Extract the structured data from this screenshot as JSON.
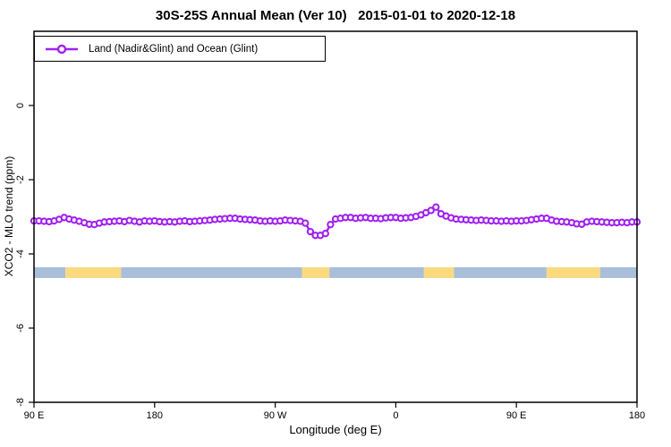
{
  "chart_data": {
    "type": "line",
    "title": "30S-25S Annual Mean (Ver 10)   2015-01-01 to 2020-12-18",
    "xlabel": "Longitude (deg E)",
    "ylabel": "XCO2 - MLO trend (ppm)",
    "grid": false,
    "legend_position": "top-left",
    "legend": [
      {
        "label": "Land (Nadir&Glint) and Ocean (Glint)",
        "color": "#A020F0",
        "marker": "open-circle"
      }
    ],
    "xlim_display_deg": [
      90,
      540
    ],
    "ylim": [
      -8,
      2
    ],
    "x_ticks": [
      {
        "label": "90 E",
        "deg": 90
      },
      {
        "label": "180",
        "deg": 180
      },
      {
        "label": "90 W",
        "deg": 270
      },
      {
        "label": "0",
        "deg": 360
      },
      {
        "label": "90 E",
        "deg": 450
      },
      {
        "label": "180",
        "deg": 540
      }
    ],
    "y_ticks": [
      {
        "label": "0",
        "value": 0
      },
      {
        "label": "-2",
        "value": -2
      },
      {
        "label": "-4",
        "value": -4
      },
      {
        "label": "-6",
        "value": -6
      },
      {
        "label": "-8",
        "value": -8
      }
    ],
    "series": [
      {
        "name": "Land (Nadir&Glint) and Ocean (Glint)",
        "color": "#A020F0",
        "marker_fill": "#FFFFFF",
        "x_start_deg": 90,
        "x_step_deg": 3.75,
        "values": [
          -3.11,
          -3.11,
          -3.12,
          -3.13,
          -3.11,
          -3.07,
          -3.02,
          -3.06,
          -3.09,
          -3.12,
          -3.16,
          -3.2,
          -3.21,
          -3.17,
          -3.14,
          -3.13,
          -3.12,
          -3.11,
          -3.13,
          -3.1,
          -3.12,
          -3.14,
          -3.11,
          -3.12,
          -3.11,
          -3.13,
          -3.14,
          -3.13,
          -3.14,
          -3.12,
          -3.11,
          -3.13,
          -3.12,
          -3.11,
          -3.1,
          -3.09,
          -3.07,
          -3.06,
          -3.05,
          -3.04,
          -3.04,
          -3.06,
          -3.07,
          -3.08,
          -3.09,
          -3.11,
          -3.12,
          -3.11,
          -3.12,
          -3.11,
          -3.09,
          -3.1,
          -3.11,
          -3.12,
          -3.17,
          -3.4,
          -3.5,
          -3.5,
          -3.45,
          -3.21,
          -3.06,
          -3.04,
          -3.02,
          -3.02,
          -3.04,
          -3.03,
          -3.02,
          -3.04,
          -3.04,
          -3.05,
          -3.03,
          -3.02,
          -3.02,
          -3.04,
          -3.03,
          -3.02,
          -2.99,
          -2.95,
          -2.89,
          -2.83,
          -2.74,
          -2.92,
          -2.98,
          -3.03,
          -3.06,
          -3.07,
          -3.08,
          -3.09,
          -3.1,
          -3.09,
          -3.1,
          -3.11,
          -3.11,
          -3.12,
          -3.11,
          -3.12,
          -3.11,
          -3.11,
          -3.1,
          -3.08,
          -3.06,
          -3.04,
          -3.04,
          -3.09,
          -3.12,
          -3.13,
          -3.14,
          -3.16,
          -3.19,
          -3.2,
          -3.14,
          -3.12,
          -3.13,
          -3.14,
          -3.15,
          -3.16,
          -3.16,
          -3.15,
          -3.16,
          -3.14,
          -3.14
        ]
      }
    ],
    "surface_band": {
      "description": "land/ocean surface-type strip",
      "y_range_ppm": [
        -4.65,
        -4.36
      ],
      "colors": {
        "land": "#FBD97E",
        "ocean": "#A9BFD9"
      },
      "segments": [
        {
          "type": "ocean",
          "from_deg": 90,
          "to_deg": 113.5
        },
        {
          "type": "land",
          "from_deg": 113.5,
          "to_deg": 155
        },
        {
          "type": "ocean",
          "from_deg": 155,
          "to_deg": 290
        },
        {
          "type": "land",
          "from_deg": 290,
          "to_deg": 310.5
        },
        {
          "type": "ocean",
          "from_deg": 310.5,
          "to_deg": 381
        },
        {
          "type": "land",
          "from_deg": 381,
          "to_deg": 403.5
        },
        {
          "type": "ocean",
          "from_deg": 403.5,
          "to_deg": 472.5
        },
        {
          "type": "land",
          "from_deg": 472.5,
          "to_deg": 512.5
        },
        {
          "type": "ocean",
          "from_deg": 512.5,
          "to_deg": 540
        }
      ]
    }
  }
}
